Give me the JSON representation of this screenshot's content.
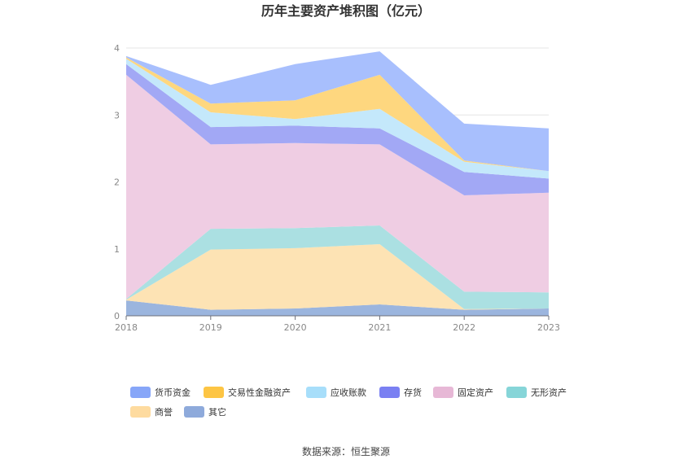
{
  "chart_data": {
    "type": "area",
    "stacked": true,
    "title": "历年主要资产堆积图（亿元）",
    "x": [
      "2018",
      "2019",
      "2020",
      "2021",
      "2022",
      "2023"
    ],
    "yticks": [
      "0",
      "1",
      "2",
      "3",
      "4"
    ],
    "ylim": [
      0,
      4
    ],
    "grid": true,
    "legend_position": "bottom",
    "series": [
      {
        "name": "其它",
        "color": "#9bb5de",
        "values": [
          0.23,
          0.09,
          0.11,
          0.17,
          0.09,
          0.11
        ]
      },
      {
        "name": "商誉",
        "color": "#fde3b4",
        "values": [
          0.01,
          0.9,
          0.9,
          0.9,
          0.01,
          0.0
        ]
      },
      {
        "name": "无形资产",
        "color": "#abe0e2",
        "values": [
          0.01,
          0.31,
          0.3,
          0.28,
          0.26,
          0.24
        ]
      },
      {
        "name": "固定资产",
        "color": "#efcde3",
        "values": [
          3.35,
          1.26,
          1.27,
          1.21,
          1.44,
          1.49
        ]
      },
      {
        "name": "存货",
        "color": "#a2a8f5",
        "values": [
          0.16,
          0.26,
          0.26,
          0.24,
          0.35,
          0.21
        ]
      },
      {
        "name": "应收账款",
        "color": "#c4e8fb",
        "values": [
          0.08,
          0.22,
          0.1,
          0.29,
          0.15,
          0.11
        ]
      },
      {
        "name": "交易性金融资产",
        "color": "#fed77f",
        "values": [
          0.02,
          0.13,
          0.28,
          0.51,
          0.02,
          0.0
        ]
      },
      {
        "name": "货币资金",
        "color": "#a8bffd",
        "values": [
          0.02,
          0.28,
          0.54,
          0.35,
          0.55,
          0.64
        ]
      }
    ],
    "legend_order": [
      "货币资金",
      "交易性金融资产",
      "应收账款",
      "存货",
      "固定资产",
      "无形资产",
      "商誉",
      "其它"
    ],
    "legend_colors": {
      "货币资金": "#87a6f8",
      "交易性金融资产": "#fdc544",
      "应收账款": "#a7defa",
      "存货": "#7a80f2",
      "固定资产": "#e7b8d6",
      "无形资产": "#86d5d8",
      "商誉": "#fedb9f",
      "其它": "#8eaadb"
    }
  },
  "source": "数据来源：恒生聚源"
}
